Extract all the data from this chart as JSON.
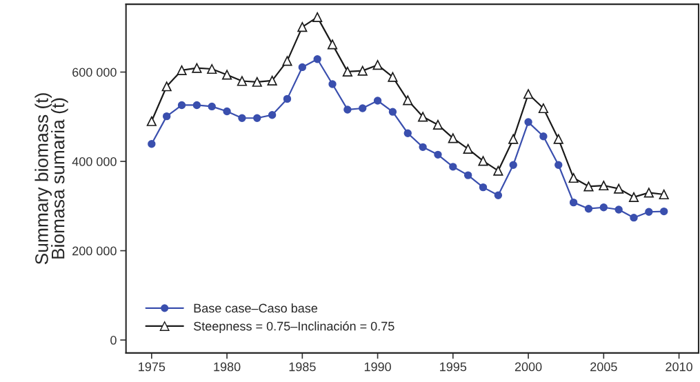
{
  "chart_data": {
    "type": "line",
    "ylabel": "Summary biomass (t)\nBiomasa sumaria (t)",
    "x": [
      1975,
      1976,
      1977,
      1978,
      1979,
      1980,
      1981,
      1982,
      1983,
      1984,
      1985,
      1986,
      1987,
      1988,
      1989,
      1990,
      1991,
      1992,
      1993,
      1994,
      1995,
      1996,
      1997,
      1998,
      1999,
      2000,
      2001,
      2002,
      2003,
      2004,
      2005,
      2006,
      2007,
      2008,
      2009
    ],
    "series": [
      {
        "name": "Base case–Caso base",
        "color": "#3a4fae",
        "marker": "circle",
        "values": [
          439000,
          501000,
          526000,
          526000,
          523000,
          512000,
          497000,
          497000,
          504000,
          540000,
          611000,
          629000,
          573000,
          516000,
          519000,
          536000,
          511000,
          463000,
          432000,
          415000,
          388000,
          369000,
          342000,
          324000,
          392000,
          488000,
          456000,
          392000,
          308000,
          294000,
          297000,
          292000,
          274000,
          287000,
          288000
        ]
      },
      {
        "name": "Steepness = 0.75–Inclinación = 0.75",
        "color": "#1a1a1a",
        "marker": "triangle",
        "values": [
          490000,
          568000,
          604000,
          609000,
          607000,
          594000,
          580000,
          578000,
          581000,
          625000,
          701000,
          723000,
          662000,
          601000,
          603000,
          616000,
          589000,
          537000,
          500000,
          482000,
          452000,
          428000,
          401000,
          379000,
          450000,
          551000,
          519000,
          450000,
          363000,
          344000,
          346000,
          339000,
          320000,
          330000,
          326000
        ]
      }
    ],
    "xlim": [
      1973.3,
      2011.3
    ],
    "xticks": [
      1975,
      1980,
      1985,
      1990,
      1995,
      2000,
      2005,
      2010
    ],
    "ylim": [
      -29000,
      752000
    ],
    "yticks": [
      {
        "value": 0,
        "label": "0"
      },
      {
        "value": 200000,
        "label": "200 000"
      },
      {
        "value": 400000,
        "label": "400 000"
      },
      {
        "value": 600000,
        "label": "600 000"
      }
    ],
    "grid": false,
    "legend": "bottom left"
  }
}
